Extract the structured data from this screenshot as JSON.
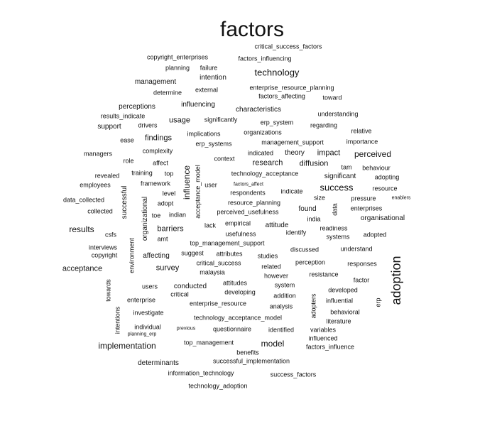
{
  "word_cloud": {
    "text_color": "#111111",
    "background": "#ffffff",
    "words": [
      {
        "text": "factors",
        "orientation": "horizontal"
      },
      {
        "text": "critical_success_factors",
        "orientation": "horizontal"
      },
      {
        "text": "copyright_enterprises",
        "orientation": "horizontal"
      },
      {
        "text": "factors_influencing",
        "orientation": "horizontal"
      },
      {
        "text": "planning",
        "orientation": "horizontal"
      },
      {
        "text": "failure",
        "orientation": "horizontal"
      },
      {
        "text": "technology",
        "orientation": "horizontal"
      },
      {
        "text": "intention",
        "orientation": "horizontal"
      },
      {
        "text": "management",
        "orientation": "horizontal"
      },
      {
        "text": "enterprise_resource_planning",
        "orientation": "horizontal"
      },
      {
        "text": "external",
        "orientation": "horizontal"
      },
      {
        "text": "determine",
        "orientation": "horizontal"
      },
      {
        "text": "factors_affecting",
        "orientation": "horizontal"
      },
      {
        "text": "toward",
        "orientation": "horizontal"
      },
      {
        "text": "perceptions",
        "orientation": "horizontal"
      },
      {
        "text": "influencing",
        "orientation": "horizontal"
      },
      {
        "text": "characteristics",
        "orientation": "horizontal"
      },
      {
        "text": "understanding",
        "orientation": "horizontal"
      },
      {
        "text": "results_indicate",
        "orientation": "horizontal"
      },
      {
        "text": "usage",
        "orientation": "horizontal"
      },
      {
        "text": "significantly",
        "orientation": "horizontal"
      },
      {
        "text": "erp_system",
        "orientation": "horizontal"
      },
      {
        "text": "support",
        "orientation": "horizontal"
      },
      {
        "text": "drivers",
        "orientation": "horizontal"
      },
      {
        "text": "regarding",
        "orientation": "horizontal"
      },
      {
        "text": "implications",
        "orientation": "horizontal"
      },
      {
        "text": "organizations",
        "orientation": "horizontal"
      },
      {
        "text": "relative",
        "orientation": "horizontal"
      },
      {
        "text": "ease",
        "orientation": "horizontal"
      },
      {
        "text": "findings",
        "orientation": "horizontal"
      },
      {
        "text": "erp_systems",
        "orientation": "horizontal"
      },
      {
        "text": "management_support",
        "orientation": "horizontal"
      },
      {
        "text": "importance",
        "orientation": "horizontal"
      },
      {
        "text": "managers",
        "orientation": "horizontal"
      },
      {
        "text": "complexity",
        "orientation": "horizontal"
      },
      {
        "text": "indicated",
        "orientation": "horizontal"
      },
      {
        "text": "theory",
        "orientation": "horizontal"
      },
      {
        "text": "impact",
        "orientation": "horizontal"
      },
      {
        "text": "perceived",
        "orientation": "horizontal"
      },
      {
        "text": "role",
        "orientation": "horizontal"
      },
      {
        "text": "affect",
        "orientation": "horizontal"
      },
      {
        "text": "context",
        "orientation": "horizontal"
      },
      {
        "text": "research",
        "orientation": "horizontal"
      },
      {
        "text": "diffusion",
        "orientation": "horizontal"
      },
      {
        "text": "tam",
        "orientation": "horizontal"
      },
      {
        "text": "behaviour",
        "orientation": "horizontal"
      },
      {
        "text": "revealed",
        "orientation": "horizontal"
      },
      {
        "text": "training",
        "orientation": "horizontal"
      },
      {
        "text": "top",
        "orientation": "horizontal"
      },
      {
        "text": "influence",
        "orientation": "vertical"
      },
      {
        "text": "acceptance_model",
        "orientation": "vertical"
      },
      {
        "text": "technology_acceptance",
        "orientation": "horizontal"
      },
      {
        "text": "significant",
        "orientation": "horizontal"
      },
      {
        "text": "adopting",
        "orientation": "horizontal"
      },
      {
        "text": "employees",
        "orientation": "horizontal"
      },
      {
        "text": "framework",
        "orientation": "horizontal"
      },
      {
        "text": "user",
        "orientation": "horizontal"
      },
      {
        "text": "factors_affect",
        "orientation": "horizontal"
      },
      {
        "text": "success",
        "orientation": "horizontal"
      },
      {
        "text": "resource",
        "orientation": "horizontal"
      },
      {
        "text": "successful",
        "orientation": "vertical"
      },
      {
        "text": "level",
        "orientation": "horizontal"
      },
      {
        "text": "respondents",
        "orientation": "horizontal"
      },
      {
        "text": "indicate",
        "orientation": "horizontal"
      },
      {
        "text": "size",
        "orientation": "horizontal"
      },
      {
        "text": "pressure",
        "orientation": "horizontal"
      },
      {
        "text": "enablers",
        "orientation": "horizontal"
      },
      {
        "text": "data_collected",
        "orientation": "horizontal"
      },
      {
        "text": "adopt",
        "orientation": "horizontal"
      },
      {
        "text": "resource_planning",
        "orientation": "horizontal"
      },
      {
        "text": "data",
        "orientation": "vertical"
      },
      {
        "text": "enterprises",
        "orientation": "horizontal"
      },
      {
        "text": "collected",
        "orientation": "horizontal"
      },
      {
        "text": "organizational",
        "orientation": "vertical"
      },
      {
        "text": "toe",
        "orientation": "horizontal"
      },
      {
        "text": "indian",
        "orientation": "horizontal"
      },
      {
        "text": "perceived_usefulness",
        "orientation": "horizontal"
      },
      {
        "text": "found",
        "orientation": "horizontal"
      },
      {
        "text": "india",
        "orientation": "horizontal"
      },
      {
        "text": "organisational",
        "orientation": "horizontal"
      },
      {
        "text": "results",
        "orientation": "horizontal"
      },
      {
        "text": "barriers",
        "orientation": "horizontal"
      },
      {
        "text": "lack",
        "orientation": "horizontal"
      },
      {
        "text": "empirical",
        "orientation": "horizontal"
      },
      {
        "text": "attitude",
        "orientation": "horizontal"
      },
      {
        "text": "readiness",
        "orientation": "horizontal"
      },
      {
        "text": "csfs",
        "orientation": "horizontal"
      },
      {
        "text": "usefulness",
        "orientation": "horizontal"
      },
      {
        "text": "identify",
        "orientation": "horizontal"
      },
      {
        "text": "systems",
        "orientation": "horizontal"
      },
      {
        "text": "adopted",
        "orientation": "horizontal"
      },
      {
        "text": "amt",
        "orientation": "horizontal"
      },
      {
        "text": "top_management_support",
        "orientation": "horizontal"
      },
      {
        "text": "interviews",
        "orientation": "horizontal"
      },
      {
        "text": "environment",
        "orientation": "vertical"
      },
      {
        "text": "discussed",
        "orientation": "horizontal"
      },
      {
        "text": "understand",
        "orientation": "horizontal"
      },
      {
        "text": "copyright",
        "orientation": "horizontal"
      },
      {
        "text": "affecting",
        "orientation": "horizontal"
      },
      {
        "text": "suggest",
        "orientation": "horizontal"
      },
      {
        "text": "attributes",
        "orientation": "horizontal"
      },
      {
        "text": "studies",
        "orientation": "horizontal"
      },
      {
        "text": "adoption",
        "orientation": "vertical"
      },
      {
        "text": "critical_success",
        "orientation": "horizontal"
      },
      {
        "text": "perception",
        "orientation": "horizontal"
      },
      {
        "text": "responses",
        "orientation": "horizontal"
      },
      {
        "text": "acceptance",
        "orientation": "horizontal"
      },
      {
        "text": "survey",
        "orientation": "horizontal"
      },
      {
        "text": "related",
        "orientation": "horizontal"
      },
      {
        "text": "malaysia",
        "orientation": "horizontal"
      },
      {
        "text": "however",
        "orientation": "horizontal"
      },
      {
        "text": "resistance",
        "orientation": "horizontal"
      },
      {
        "text": "factor",
        "orientation": "horizontal"
      },
      {
        "text": "users",
        "orientation": "horizontal"
      },
      {
        "text": "conducted",
        "orientation": "horizontal"
      },
      {
        "text": "attitudes",
        "orientation": "horizontal"
      },
      {
        "text": "system",
        "orientation": "horizontal"
      },
      {
        "text": "developed",
        "orientation": "horizontal"
      },
      {
        "text": "towards",
        "orientation": "vertical"
      },
      {
        "text": "critical",
        "orientation": "horizontal"
      },
      {
        "text": "developing",
        "orientation": "horizontal"
      },
      {
        "text": "addition",
        "orientation": "horizontal"
      },
      {
        "text": "influential",
        "orientation": "horizontal"
      },
      {
        "text": "erp",
        "orientation": "vertical"
      },
      {
        "text": "enterprise",
        "orientation": "horizontal"
      },
      {
        "text": "enterprise_resource",
        "orientation": "horizontal"
      },
      {
        "text": "analysis",
        "orientation": "horizontal"
      },
      {
        "text": "adopters",
        "orientation": "vertical"
      },
      {
        "text": "behavioral",
        "orientation": "horizontal"
      },
      {
        "text": "investigate",
        "orientation": "horizontal"
      },
      {
        "text": "technology_acceptance_model",
        "orientation": "horizontal"
      },
      {
        "text": "literature",
        "orientation": "horizontal"
      },
      {
        "text": "intentions",
        "orientation": "vertical"
      },
      {
        "text": "individual",
        "orientation": "horizontal"
      },
      {
        "text": "previous",
        "orientation": "horizontal"
      },
      {
        "text": "questionnaire",
        "orientation": "horizontal"
      },
      {
        "text": "identified",
        "orientation": "horizontal"
      },
      {
        "text": "variables",
        "orientation": "horizontal"
      },
      {
        "text": "planning_erp",
        "orientation": "horizontal"
      },
      {
        "text": "influenced",
        "orientation": "horizontal"
      },
      {
        "text": "implementation",
        "orientation": "horizontal"
      },
      {
        "text": "top_management",
        "orientation": "horizontal"
      },
      {
        "text": "model",
        "orientation": "horizontal"
      },
      {
        "text": "factors_influence",
        "orientation": "horizontal"
      },
      {
        "text": "benefits",
        "orientation": "horizontal"
      },
      {
        "text": "determinants",
        "orientation": "horizontal"
      },
      {
        "text": "successful_implementation",
        "orientation": "horizontal"
      },
      {
        "text": "information_technology",
        "orientation": "horizontal"
      },
      {
        "text": "success_factors",
        "orientation": "horizontal"
      },
      {
        "text": "technology_adoption",
        "orientation": "horizontal"
      }
    ]
  }
}
